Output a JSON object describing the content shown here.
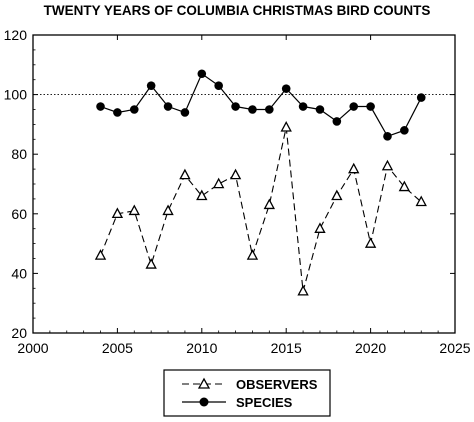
{
  "chart_data": {
    "type": "line",
    "title": "TWENTY YEARS OF COLUMBIA CHRISTMAS BIRD COUNTS",
    "xlabel": "",
    "ylabel": "",
    "xlim": [
      2000,
      2025
    ],
    "ylim": [
      20,
      120
    ],
    "x_ticks": [
      2000,
      2005,
      2010,
      2015,
      2020,
      2025
    ],
    "y_ticks": [
      20,
      40,
      60,
      80,
      100,
      120
    ],
    "reference_line": {
      "y": 100,
      "style": "dotted"
    },
    "legend_position": "bottom-center",
    "x": [
      2004,
      2005,
      2006,
      2007,
      2008,
      2009,
      2010,
      2011,
      2012,
      2013,
      2014,
      2015,
      2016,
      2017,
      2018,
      2019,
      2020,
      2021,
      2022,
      2023
    ],
    "series": [
      {
        "name": "OBSERVERS",
        "marker": "open-triangle",
        "line": "dashed",
        "values": [
          46,
          60,
          61,
          43,
          61,
          73,
          66,
          70,
          73,
          46,
          63,
          89,
          34,
          55,
          66,
          75,
          50,
          76,
          69,
          64
        ]
      },
      {
        "name": "SPECIES",
        "marker": "filled-circle",
        "line": "solid",
        "values": [
          96,
          94,
          95,
          103,
          96,
          94,
          107,
          103,
          96,
          95,
          95,
          102,
          96,
          95,
          91,
          96,
          96,
          86,
          88,
          99
        ]
      }
    ]
  }
}
